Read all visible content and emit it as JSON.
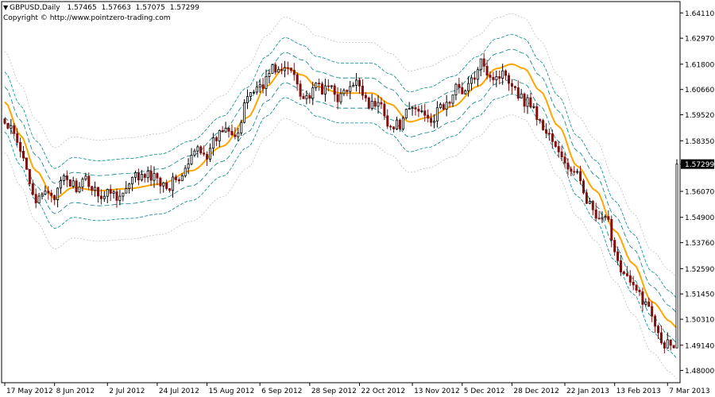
{
  "header": {
    "symbol": "GBPUSD,Daily",
    "open": "1.57465",
    "high": "1.57663",
    "low": "1.57075",
    "close": "1.57299",
    "copyright": "Copyright © http://www.pointzero-trading.com"
  },
  "chart_data": {
    "type": "candlestick",
    "symbol": "GBPUSD",
    "timeframe": "Daily",
    "current_price": 1.57299,
    "ylim": [
      1.4745,
      1.6462
    ],
    "y_ticks": [
      1.6411,
      1.6297,
      1.618,
      1.6066,
      1.5952,
      1.5835,
      1.57299,
      1.5607,
      1.549,
      1.5376,
      1.5259,
      1.5145,
      1.5031,
      1.4914,
      1.48
    ],
    "x_ticks": [
      "17 May 2012",
      "8 Jun 2012",
      "2 Jul 2012",
      "24 Jul 2012",
      "15 Aug 2012",
      "6 Sep 2012",
      "28 Sep 2012",
      "22 Oct 2012",
      "13 Nov 2012",
      "5 Dec 2012",
      "28 Dec 2012",
      "22 Jan 2013",
      "13 Feb 2013",
      "7 Mar 2013"
    ],
    "x_tick_bars": [
      0,
      16,
      33,
      49,
      65,
      82,
      98,
      114,
      131,
      147,
      163,
      180,
      196,
      213
    ],
    "midline_anchors": [
      [
        0,
        1.601
      ],
      [
        5,
        1.586
      ],
      [
        10,
        1.57
      ],
      [
        16,
        1.5575
      ],
      [
        22,
        1.5625
      ],
      [
        30,
        1.561
      ],
      [
        40,
        1.562
      ],
      [
        50,
        1.564
      ],
      [
        60,
        1.57
      ],
      [
        70,
        1.581
      ],
      [
        78,
        1.594
      ],
      [
        84,
        1.608
      ],
      [
        90,
        1.6165
      ],
      [
        96,
        1.613
      ],
      [
        100,
        1.608
      ],
      [
        108,
        1.605
      ],
      [
        118,
        1.605
      ],
      [
        124,
        1.6
      ],
      [
        130,
        1.592
      ],
      [
        136,
        1.594
      ],
      [
        144,
        1.599
      ],
      [
        152,
        1.608
      ],
      [
        158,
        1.616
      ],
      [
        163,
        1.618
      ],
      [
        167,
        1.616
      ],
      [
        172,
        1.606
      ],
      [
        178,
        1.59
      ],
      [
        184,
        1.572
      ],
      [
        190,
        1.561
      ],
      [
        196,
        1.543
      ],
      [
        202,
        1.528
      ],
      [
        208,
        1.511
      ],
      [
        214,
        1.502
      ],
      [
        216,
        1.499
      ]
    ],
    "bands": {
      "center_color": "#FFA500",
      "inner_color": "#008080",
      "middle_color": "#008B8B",
      "outer_color": "#C0C0C0",
      "inner_offset": 0.0068,
      "middle_offset": 0.0135,
      "outer_offset": 0.0228
    },
    "candles": {
      "count": 217,
      "bull_color": "#000000",
      "bear_color": "#7F1010",
      "seed": 42
    },
    "grid": false,
    "legend": "none"
  }
}
